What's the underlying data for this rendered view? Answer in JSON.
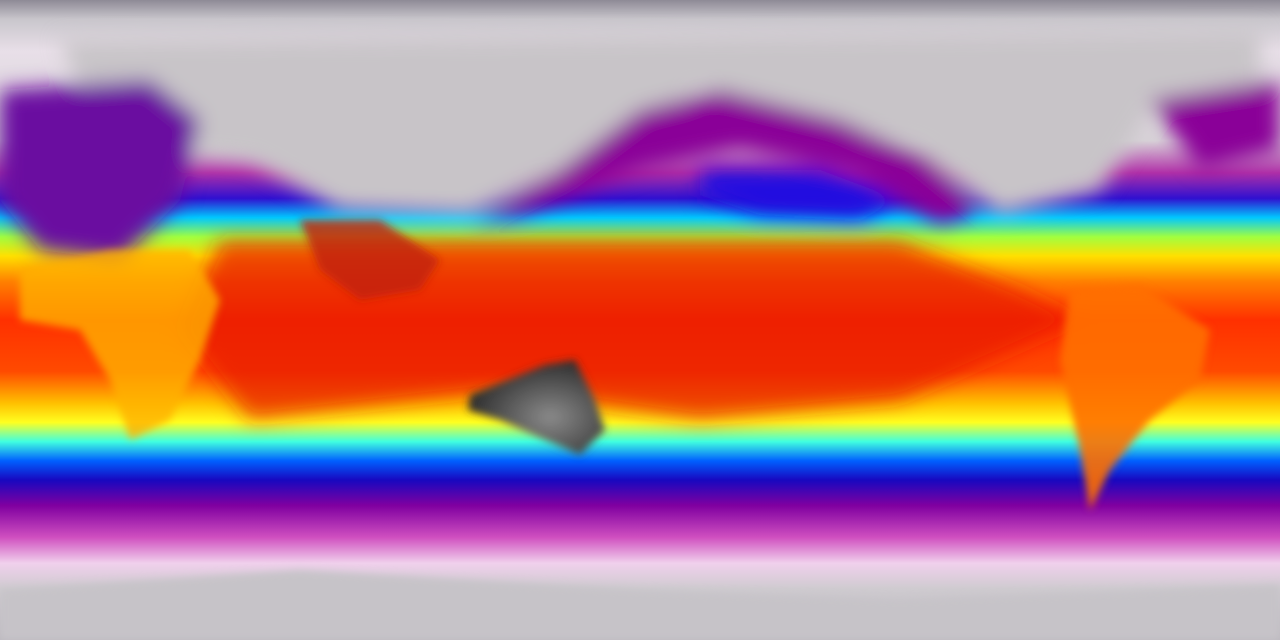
{
  "map": {
    "projection": "equirectangular",
    "type": "global-field-colormap",
    "colormap": [
      "#c9c6cc",
      "#f2e6f0",
      "#c040b0",
      "#8a0098",
      "#1a10e0",
      "#00d0ff",
      "#30ffd0",
      "#ffff00",
      "#ffa000",
      "#ff3000",
      "#d81010"
    ],
    "land_colors": {
      "australia": "#3a3a3a",
      "northern-landmass": "#b8b6ba",
      "antarctica": "#c8c6ca"
    }
  }
}
